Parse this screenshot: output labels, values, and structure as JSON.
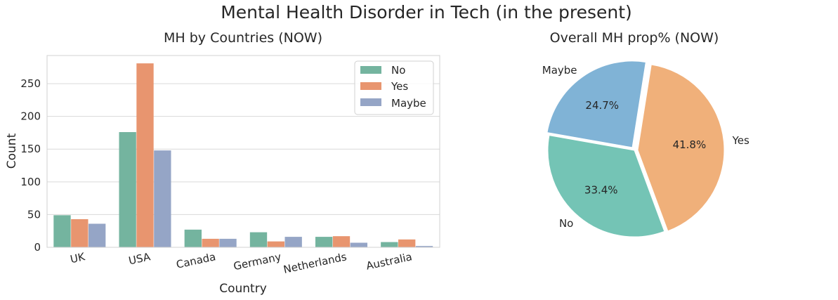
{
  "figure_title": "Mental Health Disorder in Tech (in the present)",
  "colors": {
    "No": "#74b49f",
    "Yes": "#e8956f",
    "Maybe": "#95a5c6",
    "pie_no": "#74c4b5",
    "pie_yes": "#f0b07a",
    "pie_maybe": "#80b3d6",
    "grid": "#d9d9d9",
    "frame": "#d0d0d0"
  },
  "chart_data": [
    {
      "type": "bar",
      "title": "MH by Countries (NOW)",
      "xlabel": "Country",
      "ylabel": "Count",
      "categories": [
        "UK",
        "USA",
        "Canada",
        "Germany",
        "Netherlands",
        "Australia"
      ],
      "series": [
        {
          "name": "No",
          "values": [
            49,
            176,
            27,
            23,
            16,
            8
          ]
        },
        {
          "name": "Yes",
          "values": [
            43,
            281,
            13,
            9,
            17,
            12
          ]
        },
        {
          "name": "Maybe",
          "values": [
            36,
            148,
            13,
            16,
            7,
            2
          ]
        }
      ],
      "ylim": [
        0,
        293
      ],
      "yticks": [
        0,
        50,
        100,
        150,
        200,
        250
      ],
      "grid": "horizontal",
      "legend_position": "top-right"
    },
    {
      "type": "pie",
      "title": "Overall MH prop% (NOW)",
      "labels": [
        "Maybe",
        "Yes",
        "No"
      ],
      "values": [
        24.7,
        41.8,
        33.4
      ],
      "value_labels": [
        "24.7%",
        "41.8%",
        "33.4%"
      ],
      "exploded": [
        "Maybe",
        "Yes"
      ]
    }
  ]
}
